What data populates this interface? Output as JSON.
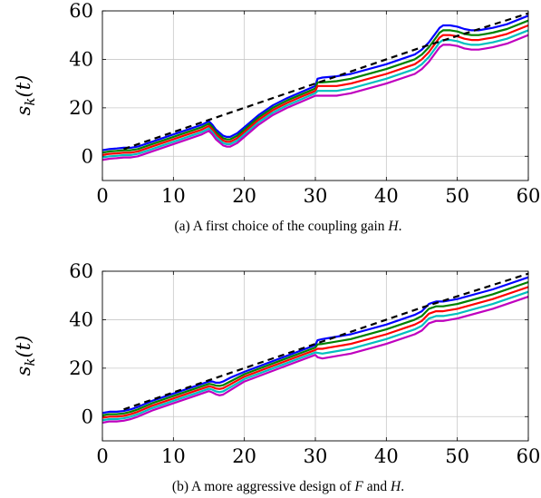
{
  "chart_data": [
    {
      "type": "line",
      "caption": "(a) A first choice of the coupling gain H.",
      "ylabel": "s_k(t)",
      "xlim": [
        0,
        60
      ],
      "ylim": [
        -10,
        60
      ],
      "x_ticks": [
        0,
        10,
        20,
        30,
        40,
        50,
        60
      ],
      "y_ticks": [
        0,
        20,
        40,
        60
      ],
      "grid": true,
      "reference": {
        "style": "dashed",
        "color": "#000000",
        "x": [
          3,
          15,
          30,
          45,
          60
        ],
        "y": [
          3,
          15,
          30,
          45,
          59
        ]
      },
      "series": [
        {
          "color": "#0000ff",
          "x": [
            0,
            1,
            2,
            3,
            4,
            5,
            7,
            10,
            12,
            14,
            15,
            15.5,
            16,
            17,
            17.5,
            18,
            19,
            20,
            22,
            24,
            26,
            28,
            30,
            30.3,
            31,
            33,
            35,
            40,
            44,
            45,
            46,
            47,
            47.5,
            48,
            49,
            50,
            51,
            52,
            53,
            54,
            55,
            57,
            60
          ],
          "y": [
            2.5,
            3,
            3.2,
            3.5,
            3.5,
            4,
            6,
            9,
            11,
            13,
            14.5,
            13,
            11,
            8.5,
            8,
            8,
            9.5,
            12,
            17,
            21,
            24,
            26.5,
            29,
            32,
            32.5,
            33,
            34,
            38,
            42,
            44,
            47,
            51,
            53,
            54,
            54,
            53.5,
            52.5,
            52,
            52,
            52.5,
            53,
            54.5,
            58
          ]
        },
        {
          "color": "#008000",
          "x": [
            0,
            1,
            2,
            3,
            4,
            5,
            7,
            10,
            12,
            14,
            15,
            15.5,
            16,
            17,
            17.5,
            18,
            19,
            20,
            22,
            24,
            26,
            28,
            30,
            30.3,
            31,
            33,
            35,
            40,
            44,
            45,
            46,
            47,
            47.5,
            48,
            49,
            50,
            51,
            52,
            53,
            54,
            55,
            57,
            60
          ],
          "y": [
            1.5,
            2,
            2.2,
            2.5,
            2.5,
            3,
            5,
            8,
            10,
            12,
            13.5,
            12,
            10,
            7.5,
            7,
            7,
            8.5,
            11,
            16,
            20,
            23,
            25.5,
            28,
            30.5,
            30.5,
            31,
            32,
            36,
            40,
            42,
            45,
            49,
            51,
            52,
            52,
            51.5,
            50.5,
            50,
            50,
            50.5,
            51,
            52.5,
            56
          ]
        },
        {
          "color": "#ff0000",
          "x": [
            0,
            1,
            2,
            3,
            4,
            5,
            7,
            10,
            12,
            14,
            15,
            15.5,
            16,
            17,
            17.5,
            18,
            19,
            20,
            22,
            24,
            26,
            28,
            30,
            30.3,
            31,
            33,
            35,
            40,
            44,
            45,
            46,
            47,
            47.5,
            48,
            49,
            50,
            51,
            52,
            53,
            54,
            55,
            57,
            60
          ],
          "y": [
            0.5,
            1,
            1.2,
            1.5,
            1.5,
            2,
            4,
            7,
            9,
            11,
            12.5,
            11,
            9,
            6.5,
            6,
            6,
            7.5,
            10,
            15,
            19,
            22,
            24.5,
            27,
            29,
            29,
            29,
            30,
            34,
            38,
            40,
            43,
            47,
            49,
            50,
            50,
            49.5,
            48.5,
            48,
            48,
            48.5,
            49,
            50.5,
            54
          ]
        },
        {
          "color": "#00bfbf",
          "x": [
            0,
            1,
            2,
            3,
            4,
            5,
            7,
            10,
            12,
            14,
            15,
            15.5,
            16,
            17,
            17.5,
            18,
            19,
            20,
            22,
            24,
            26,
            28,
            30,
            30.3,
            31,
            33,
            35,
            40,
            44,
            45,
            46,
            47,
            47.5,
            48,
            49,
            50,
            51,
            52,
            53,
            54,
            55,
            57,
            60
          ],
          "y": [
            -0.5,
            0,
            0.2,
            0.5,
            0.5,
            1,
            3,
            6,
            8,
            10,
            11.5,
            10,
            8,
            5.5,
            5,
            5,
            6.5,
            9,
            14,
            18,
            21,
            23.5,
            26,
            27,
            27,
            27,
            28,
            32,
            36,
            38,
            41,
            45,
            47,
            48,
            48,
            47.5,
            46.5,
            46,
            46,
            46.5,
            47,
            48.5,
            52
          ]
        },
        {
          "color": "#bf00bf",
          "x": [
            0,
            1,
            2,
            3,
            4,
            5,
            7,
            10,
            12,
            14,
            15,
            15.5,
            16,
            17,
            17.5,
            18,
            19,
            20,
            22,
            24,
            26,
            28,
            30,
            30.3,
            31,
            33,
            35,
            40,
            44,
            45,
            46,
            47,
            47.5,
            48,
            49,
            50,
            51,
            52,
            53,
            54,
            55,
            57,
            60
          ],
          "y": [
            -1.5,
            -1,
            -0.8,
            -0.5,
            -0.5,
            0,
            2,
            5,
            7,
            9,
            10.5,
            9,
            7,
            4.5,
            4,
            4,
            5.5,
            8,
            13,
            17,
            20,
            22.5,
            25,
            25,
            25,
            25,
            26,
            30,
            34,
            36,
            39,
            43,
            45,
            46,
            46,
            45.5,
            44.5,
            44,
            44,
            44.5,
            45,
            46.5,
            50
          ]
        }
      ]
    },
    {
      "type": "line",
      "caption": "(b) A more aggressive design of F and H.",
      "ylabel": "s_k(t)",
      "xlim": [
        0,
        60
      ],
      "ylim": [
        -10,
        60
      ],
      "x_ticks": [
        0,
        10,
        20,
        30,
        40,
        50,
        60
      ],
      "y_ticks": [
        0,
        20,
        40,
        60
      ],
      "grid": true,
      "reference": {
        "style": "dashed",
        "color": "#000000",
        "x": [
          3,
          15,
          30,
          45,
          60
        ],
        "y": [
          3,
          15,
          30,
          45,
          59
        ]
      },
      "series": [
        {
          "color": "#0000ff",
          "x": [
            0,
            1,
            2,
            3,
            4,
            5,
            7,
            10,
            13,
            15,
            15.5,
            16,
            16.5,
            17,
            18,
            20,
            25,
            30,
            30.3,
            31,
            32,
            35,
            40,
            44,
            45,
            45.5,
            46,
            46.5,
            47,
            48,
            50,
            55,
            60
          ],
          "y": [
            1.5,
            2,
            2,
            2.3,
            3,
            4,
            6.5,
            9.5,
            12.5,
            14.5,
            14.5,
            14,
            14,
            14.5,
            16,
            18.5,
            24,
            29.5,
            31.5,
            32,
            32.5,
            34,
            38,
            42,
            43.5,
            45,
            46.5,
            47,
            47.5,
            47.5,
            48.5,
            52.5,
            57.5
          ]
        },
        {
          "color": "#008000",
          "x": [
            0,
            1,
            2,
            3,
            4,
            5,
            7,
            10,
            13,
            15,
            15.5,
            16,
            16.5,
            17,
            18,
            20,
            25,
            30,
            30.3,
            31,
            32,
            35,
            40,
            44,
            45,
            45.5,
            46,
            46.5,
            47,
            48,
            50,
            55,
            60
          ],
          "y": [
            0.5,
            1,
            1,
            1.3,
            2,
            3,
            5.5,
            8.5,
            11.5,
            13.5,
            13.3,
            12.8,
            12.7,
            13,
            14.5,
            17.5,
            23,
            28.5,
            29.8,
            30,
            30.5,
            32,
            36,
            40,
            41.5,
            43,
            44.5,
            45,
            45.5,
            45.5,
            46.5,
            50.5,
            55.5
          ]
        },
        {
          "color": "#ff0000",
          "x": [
            0,
            1,
            2,
            3,
            4,
            5,
            7,
            10,
            13,
            15,
            15.5,
            16,
            16.5,
            17,
            18,
            20,
            25,
            30,
            30.3,
            31,
            32,
            35,
            40,
            44,
            45,
            45.5,
            46,
            46.5,
            47,
            48,
            50,
            55,
            60
          ],
          "y": [
            -0.5,
            0,
            0,
            0.3,
            1,
            2,
            4.5,
            7.5,
            10.5,
            12.5,
            12.2,
            11.6,
            11.4,
            11.7,
            13.3,
            16.5,
            22,
            27.5,
            28,
            28,
            28.5,
            30,
            34,
            38,
            39.5,
            41,
            42.5,
            43,
            43.5,
            43.5,
            44.5,
            48.5,
            53.5
          ]
        },
        {
          "color": "#00bfbf",
          "x": [
            0,
            1,
            2,
            3,
            4,
            5,
            7,
            10,
            13,
            15,
            15.5,
            16,
            16.5,
            17,
            18,
            20,
            25,
            30,
            30.3,
            31,
            32,
            35,
            40,
            44,
            45,
            45.5,
            46,
            46.5,
            47,
            48,
            50,
            55,
            60
          ],
          "y": [
            -1.5,
            -1,
            -1,
            -0.7,
            0,
            1,
            3.5,
            6.5,
            9.5,
            11.5,
            11.1,
            10.4,
            10.1,
            10.4,
            12.1,
            15.5,
            21,
            26.5,
            26.3,
            26,
            26.5,
            28,
            32,
            36,
            37.5,
            39,
            40.5,
            41,
            41.5,
            41.5,
            42.5,
            46.5,
            51.5
          ]
        },
        {
          "color": "#bf00bf",
          "x": [
            0,
            1,
            2,
            3,
            4,
            5,
            7,
            10,
            13,
            15,
            15.5,
            16,
            16.5,
            17,
            18,
            20,
            25,
            30,
            30.3,
            31,
            32,
            35,
            40,
            44,
            45,
            45.5,
            46,
            46.5,
            47,
            48,
            50,
            55,
            60
          ],
          "y": [
            -2.5,
            -2,
            -2,
            -1.7,
            -1,
            0,
            2.5,
            5.5,
            8.5,
            10.5,
            10,
            9.2,
            8.8,
            9.1,
            10.9,
            14.5,
            20,
            25.5,
            24.5,
            24,
            24.5,
            26,
            30,
            34,
            35.5,
            37,
            38.5,
            39,
            39.5,
            39.5,
            40.5,
            44.5,
            49.5
          ]
        }
      ]
    }
  ]
}
